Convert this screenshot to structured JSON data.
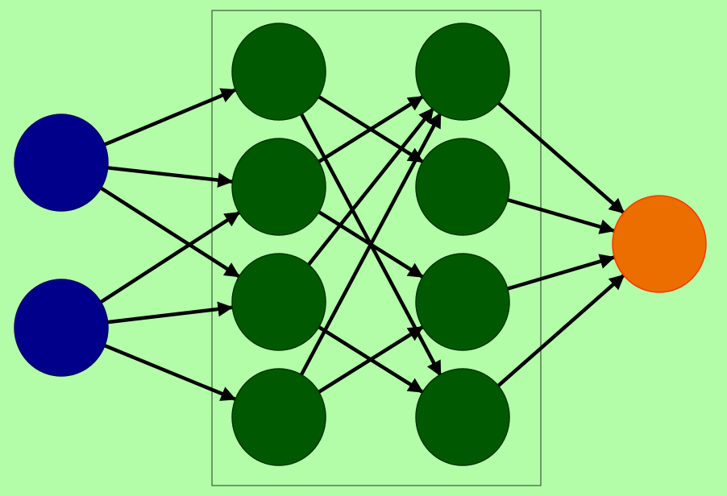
{
  "colors": {
    "background": "#b3fca8",
    "input_node": "#00008b",
    "input_stroke": "#000066",
    "hidden_node": "#005900",
    "hidden_stroke": "#003300",
    "output_node": "#ec6e00",
    "output_stroke": "#ff3300",
    "edge": "#000000",
    "box_stroke": "#3c5a3c"
  },
  "diagram": {
    "layers": [
      {
        "name": "input",
        "node_count": 2
      },
      {
        "name": "hidden-1",
        "node_count": 4
      },
      {
        "name": "hidden-2",
        "node_count": 4
      },
      {
        "name": "output",
        "node_count": 1
      }
    ],
    "hidden_layers_enclosed": true,
    "edges": [
      {
        "from": "input-1",
        "to": "hidden-1-1"
      },
      {
        "from": "input-1",
        "to": "hidden-1-2"
      },
      {
        "from": "input-1",
        "to": "hidden-1-3"
      },
      {
        "from": "input-2",
        "to": "hidden-1-2"
      },
      {
        "from": "input-2",
        "to": "hidden-1-3"
      },
      {
        "from": "input-2",
        "to": "hidden-1-4"
      },
      {
        "from": "hidden-1-1",
        "to": "hidden-2-2"
      },
      {
        "from": "hidden-1-1",
        "to": "hidden-2-4"
      },
      {
        "from": "hidden-1-2",
        "to": "hidden-2-1"
      },
      {
        "from": "hidden-1-2",
        "to": "hidden-2-3"
      },
      {
        "from": "hidden-1-3",
        "to": "hidden-2-1"
      },
      {
        "from": "hidden-1-3",
        "to": "hidden-2-4"
      },
      {
        "from": "hidden-1-4",
        "to": "hidden-2-1"
      },
      {
        "from": "hidden-1-4",
        "to": "hidden-2-3"
      },
      {
        "from": "hidden-2-1",
        "to": "output-1"
      },
      {
        "from": "hidden-2-2",
        "to": "output-1"
      },
      {
        "from": "hidden-2-3",
        "to": "output-1"
      },
      {
        "from": "hidden-2-4",
        "to": "output-1"
      }
    ]
  }
}
